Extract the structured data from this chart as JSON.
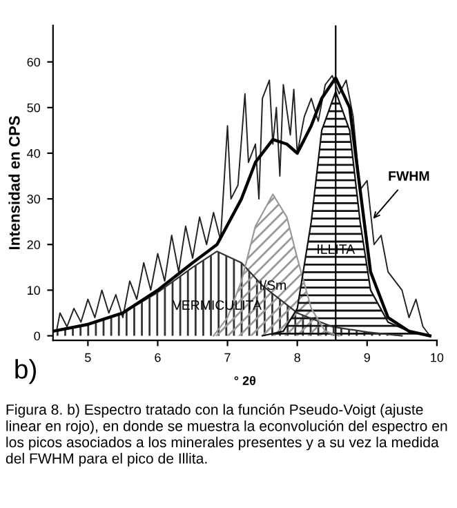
{
  "chart_data": {
    "type": "line",
    "xlabel": "° 2θ",
    "ylabel": "Intensidad en CPS",
    "xlim": [
      4.5,
      10
    ],
    "ylim": [
      -1,
      68
    ],
    "xticks": [
      5,
      6,
      7,
      8,
      9,
      10
    ],
    "yticks": [
      0,
      10,
      20,
      30,
      40,
      50,
      60
    ],
    "series": [
      {
        "color": "#222222",
        "x": [
          4.55,
          4.6,
          4.7,
          4.8,
          4.9,
          5.0,
          5.1,
          5.2,
          5.3,
          5.4,
          5.5,
          5.6,
          5.7,
          5.8,
          5.9,
          6.0,
          6.1,
          6.2,
          6.3,
          6.4,
          6.5,
          6.6,
          6.7,
          6.8,
          6.9,
          7.0,
          7.05,
          7.15,
          7.25,
          7.3,
          7.4,
          7.45,
          7.5,
          7.6,
          7.65,
          7.7,
          7.75,
          7.8,
          7.9,
          7.95,
          8.0,
          8.1,
          8.2,
          8.3,
          8.4,
          8.5,
          8.6,
          8.7,
          8.8,
          8.9,
          9.0,
          9.1,
          9.2,
          9.3,
          9.4,
          9.5,
          9.6,
          9.7,
          9.8,
          9.9
        ],
        "values": [
          1,
          5,
          2,
          6,
          3,
          8,
          4,
          10,
          5,
          9,
          4,
          12,
          8,
          16,
          10,
          18,
          12,
          22,
          14,
          24,
          17,
          26,
          20,
          27,
          21,
          46,
          30,
          33,
          53,
          38,
          42,
          30,
          52,
          56,
          42,
          50,
          35,
          55,
          44,
          54,
          40,
          48,
          52,
          47,
          55,
          57,
          53,
          56,
          48,
          32,
          34,
          20,
          22,
          14,
          12,
          10,
          4,
          8,
          2,
          0
        ]
      },
      {
        "type": "area",
        "name": "VERMICULITA",
        "color": "#333333",
        "x": [
          4.5,
          5,
          5.5,
          6,
          6.5,
          6.85,
          7.2,
          7.5,
          8,
          8.5,
          9,
          9.5
        ],
        "values": [
          1,
          2.5,
          5,
          9.5,
          15,
          18.5,
          16,
          11,
          5,
          2,
          0.8,
          0
        ]
      },
      {
        "type": "area",
        "name": "I/Sm",
        "color": "#999999",
        "x": [
          6.8,
          7,
          7.2,
          7.4,
          7.65,
          7.85,
          8,
          8.2,
          8.4,
          8.6
        ],
        "values": [
          0,
          4,
          12,
          24,
          31,
          26,
          17,
          6,
          1,
          0
        ]
      },
      {
        "type": "area",
        "name": "ILLITA",
        "color": "#111111",
        "x": [
          7.5,
          7.8,
          8.0,
          8.2,
          8.35,
          8.55,
          8.75,
          8.9,
          9.05,
          9.3,
          9.6,
          9.9
        ],
        "values": [
          0,
          1,
          6,
          25,
          45,
          53.5,
          45,
          25,
          10,
          3,
          1,
          0
        ]
      },
      {
        "color": "#000000",
        "x": [
          4.5,
          5,
          5.5,
          6,
          6.5,
          6.85,
          7.2,
          7.4,
          7.65,
          7.85,
          8.0,
          8.2,
          8.35,
          8.55,
          8.75,
          8.9,
          9.05,
          9.3,
          9.6,
          9.9
        ],
        "values": [
          1,
          2.5,
          5,
          10,
          16,
          20,
          30,
          38,
          43,
          42,
          40,
          46,
          52,
          56.5,
          50,
          32,
          14,
          4,
          1,
          0
        ]
      }
    ],
    "ref_lines": [
      {
        "axis": "x",
        "value": 8.55,
        "color": "#000000"
      }
    ],
    "annotations": [
      {
        "text": "FWHM",
        "x": 9.05,
        "y": 25
      },
      "b)",
      "Figura 8. b) Espectro tratado con la función Pseudo-Voigt (ajuste linear en rojo), en donde se muestra la econvolución del espectro en los picos asociados a los minerales presentes y a su vez la medida del FWHM para el pico de Illita."
    ]
  }
}
